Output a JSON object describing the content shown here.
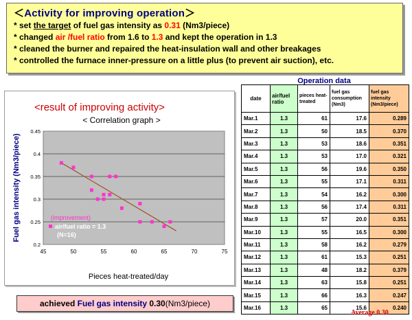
{
  "top": {
    "title_open": "＜",
    "title": "Activity for improving operation",
    "title_close": "＞",
    "l1_a": "* set ",
    "l1_b": "the target",
    "l1_c": " of fuel gas intensity as ",
    "l1_d": "0.31",
    "l1_e": " (Nm3/piece)",
    "l2_a": "* changed ",
    "l2_b": "air /fuel ratio",
    "l2_c": " from 1.6 to ",
    "l2_d": "1.3",
    "l2_e": " and kept the operation in 1.3",
    "l3": "* cleaned the burner and repaired the heat-insulation wall and other breakages",
    "l4": "* controlled the furnace inner-pressure on a little plus (to prevent air suction), etc."
  },
  "chart_box": {
    "heading": "<result of improving activity>",
    "subheading": "< Correlation graph >"
  },
  "chart_data": {
    "type": "scatter",
    "xlabel": "Pieces heat-treated/day",
    "ylabel": "Fuel gas intensity  (Nm3/piece)",
    "xlim": [
      45,
      75
    ],
    "ylim": [
      0.2,
      0.45
    ],
    "xticks": [
      "45",
      "50",
      "55",
      "60",
      "65",
      "70",
      "75"
    ],
    "yticks": [
      "0.2",
      "0.25",
      "0.3",
      "0.35",
      "0.4",
      "0.45"
    ],
    "grid": true,
    "legend_title": "(improvement)",
    "legend_label": "air/fuel ratio = 1.3",
    "legend_n": "(N=16)",
    "series": [
      {
        "name": "air/fuel ratio = 1.3",
        "points": [
          [
            48,
            0.38
          ],
          [
            50,
            0.37
          ],
          [
            53,
            0.35
          ],
          [
            53,
            0.32
          ],
          [
            54,
            0.3
          ],
          [
            55,
            0.31
          ],
          [
            55,
            0.3
          ],
          [
            56,
            0.31
          ],
          [
            56,
            0.35
          ],
          [
            57,
            0.35
          ],
          [
            58,
            0.28
          ],
          [
            61,
            0.29
          ],
          [
            61,
            0.25
          ],
          [
            63,
            0.25
          ],
          [
            65,
            0.24
          ],
          [
            66,
            0.25
          ]
        ]
      }
    ],
    "trendline": [
      [
        48,
        0.38
      ],
      [
        67,
        0.23
      ]
    ],
    "colors": {
      "point": "#ff33cc",
      "trend": "#a0522d",
      "plot_bg": "#c0c0c0"
    }
  },
  "achieved": {
    "a": "achieved ",
    "b": "Fuel gas intensity",
    "c": " 0.30",
    "d": "(Nm3/piece)"
  },
  "operation": {
    "title": "Operation data",
    "headers": [
      "date",
      "air/fuel ratio",
      "pieces heat-treated",
      "fuel gas consumption (Nm3)",
      "fuel gas intensity (Nm3/piece)"
    ],
    "rows": [
      [
        "Mar.1",
        "1.3",
        "61",
        "17.6",
        "0.289"
      ],
      [
        "Mar.2",
        "1.3",
        "50",
        "18.5",
        "0.370"
      ],
      [
        "Mar.3",
        "1.3",
        "53",
        "18.6",
        "0.351"
      ],
      [
        "Mar.4",
        "1.3",
        "53",
        "17.0",
        "0.321"
      ],
      [
        "Mar.5",
        "1.3",
        "56",
        "19.6",
        "0.350"
      ],
      [
        "Mar.6",
        "1.3",
        "55",
        "17.1",
        "0.311"
      ],
      [
        "Mar.7",
        "1.3",
        "54",
        "16.2",
        "0.300"
      ],
      [
        "Mar.8",
        "1.3",
        "56",
        "17.4",
        "0.311"
      ],
      [
        "Mar.9",
        "1.3",
        "57",
        "20.0",
        "0.351"
      ],
      [
        "Mar.10",
        "1.3",
        "55",
        "16.5",
        "0.300"
      ],
      [
        "Mar.11",
        "1.3",
        "58",
        "16.2",
        "0.279"
      ],
      [
        "Mar.12",
        "1.3",
        "61",
        "15.3",
        "0.251"
      ],
      [
        "Mar.13",
        "1.3",
        "48",
        "18.2",
        "0.379"
      ],
      [
        "Mar.14",
        "1.3",
        "63",
        "15.8",
        "0.251"
      ],
      [
        "Mar.15",
        "1.3",
        "66",
        "16.3",
        "0.247"
      ],
      [
        "Mar.16",
        "1.3",
        "65",
        "15.6",
        "0.240"
      ]
    ],
    "average": "Average  0.30"
  }
}
